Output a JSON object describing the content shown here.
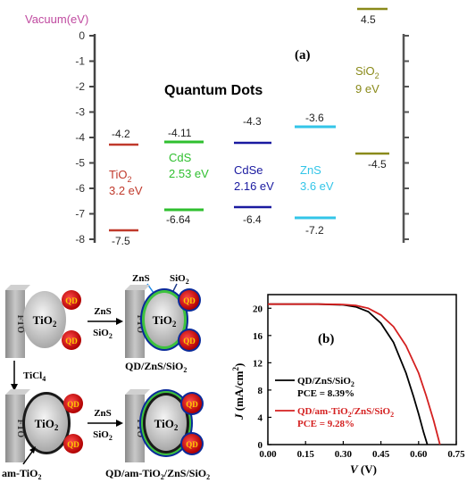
{
  "panel_a": {
    "label": "(a)",
    "vacuum_label": "Vacuum(eV)",
    "section_title": "Quantum Dots",
    "axis_ticks": [
      "0",
      "-1",
      "-2",
      "-3",
      "-4",
      "-5",
      "-6",
      "-7",
      "-8"
    ],
    "materials": [
      {
        "name": "TiO",
        "sub": "2",
        "gap": "3.2 eV",
        "cb": "-4.2",
        "vb": "-7.5",
        "color": "#c0392b"
      },
      {
        "name": "CdS",
        "sub": "",
        "gap": "2.53 eV",
        "cb": "-4.11",
        "vb": "-6.64",
        "color": "#2fbf2f"
      },
      {
        "name": "CdSe",
        "sub": "",
        "gap": "2.16 eV",
        "cb": "-4.3",
        "vb": "-6.4",
        "color": "#1a1aa0"
      },
      {
        "name": "ZnS",
        "sub": "",
        "gap": "3.6 eV",
        "cb": "-3.6",
        "vb": "-7.2",
        "color": "#33c5e8"
      },
      {
        "name": "SiO",
        "sub": "2",
        "gap": "9 eV",
        "cb": "4.5",
        "vb": "-4.5",
        "color": "#8a8a1a"
      }
    ]
  },
  "panel_b": {
    "label": "(b)",
    "xlabel": "V",
    "xunit": " (V)",
    "ylabel": "J",
    "yunit": " (mA/cm",
    "yunit_sup": "2",
    "yunit_end": ")",
    "legend": [
      {
        "text": "QD/ZnS/SiO",
        "sub": "2",
        "pce": "PCE = 8.39%",
        "color": "#000000"
      },
      {
        "text": "QD/am-TiO",
        "sub": "2",
        "text2": "/ZnS/SiO",
        "sub2": "2",
        "pce": "PCE = 9.28%",
        "color": "#d42020"
      }
    ]
  },
  "chart_data": {
    "type": "line",
    "xlabel": "V (V)",
    "ylabel": "J (mA/cm2)",
    "xlim": [
      0,
      0.75
    ],
    "ylim": [
      0,
      22
    ],
    "xticks": [
      "0.00",
      "0.15",
      "0.30",
      "0.45",
      "0.60",
      "0.75"
    ],
    "yticks": [
      "0",
      "4",
      "8",
      "12",
      "16",
      "20"
    ],
    "series": [
      {
        "name": "QD/ZnS/SiO2",
        "color": "#000000",
        "x": [
          0,
          0.1,
          0.2,
          0.3,
          0.35,
          0.4,
          0.45,
          0.5,
          0.55,
          0.58,
          0.6,
          0.62,
          0.635
        ],
        "y": [
          20.6,
          20.6,
          20.6,
          20.5,
          20.2,
          19.5,
          17.8,
          15.0,
          10.5,
          7.0,
          4.5,
          1.8,
          0
        ]
      },
      {
        "name": "QD/am-TiO2/ZnS/SiO2",
        "color": "#d42020",
        "x": [
          0,
          0.1,
          0.2,
          0.3,
          0.35,
          0.4,
          0.45,
          0.5,
          0.55,
          0.6,
          0.63,
          0.66,
          0.685
        ],
        "y": [
          20.6,
          20.6,
          20.6,
          20.55,
          20.4,
          20.0,
          19.0,
          17.3,
          14.5,
          10.5,
          7.2,
          3.5,
          0
        ]
      }
    ]
  },
  "schematic": {
    "fto": "FTO",
    "tio2": "TiO",
    "tio2_sub": "2",
    "qd": "QD",
    "zns": "ZnS",
    "sio2": "SiO",
    "sio2_sub": "2",
    "ticl4": "TiCl",
    "ticl4_sub": "4",
    "am_tio2": "am-TiO",
    "am_tio2_sub": "2",
    "caption1": "QD/ZnS/SiO",
    "caption1_sub": "2",
    "caption2_a": "QD/am-TiO",
    "caption2_sub1": "2",
    "caption2_b": "/ZnS/SiO",
    "caption2_sub2": "2"
  }
}
